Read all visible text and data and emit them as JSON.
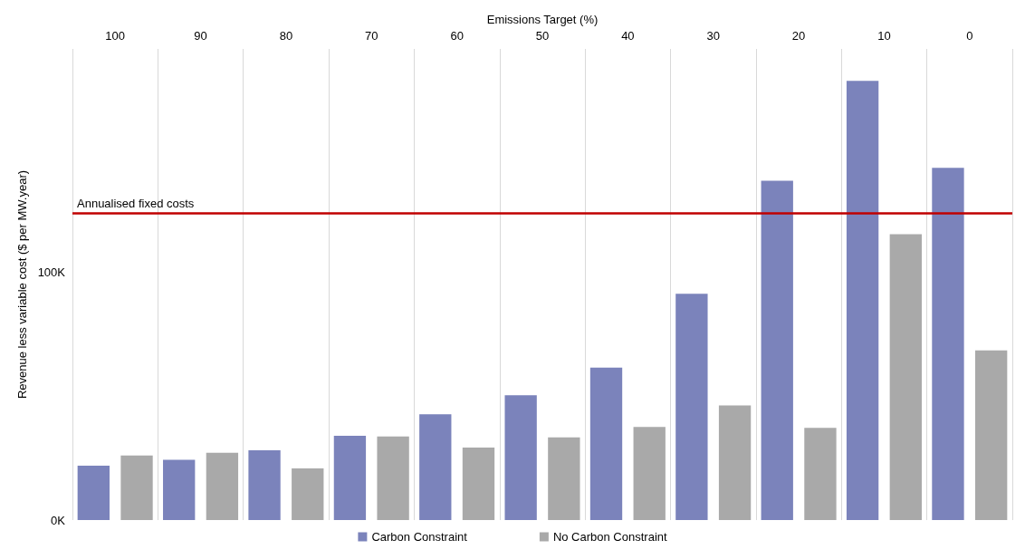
{
  "chart_data": {
    "type": "bar",
    "xlabel": "Emissions Target (%)",
    "ylabel": "Revenue less variable cost ($ per MW.year)",
    "categories": [
      "100",
      "90",
      "80",
      "70",
      "60",
      "50",
      "40",
      "30",
      "20",
      "10",
      "0"
    ],
    "series": [
      {
        "name": "Carbon Constraint",
        "color": "#7b83bb",
        "values": [
          21900,
          24300,
          28100,
          34000,
          42700,
          50300,
          61500,
          91300,
          136800,
          177100,
          142000
        ]
      },
      {
        "name": "No Carbon Constraint",
        "color": "#a9a9a9",
        "values": [
          26000,
          27100,
          20800,
          33700,
          29200,
          33300,
          37500,
          46200,
          37200,
          115300,
          68400
        ]
      }
    ],
    "ylim": [
      0,
      190000
    ],
    "yticks": [
      {
        "value": 0,
        "label": "0K"
      },
      {
        "value": 100000,
        "label": "100K"
      }
    ],
    "ref_lines": [
      {
        "axis": "y",
        "value": 123600,
        "label": "Annualised fixed costs",
        "color": "#c00000"
      }
    ],
    "grid": "x",
    "legend": "bottom"
  }
}
